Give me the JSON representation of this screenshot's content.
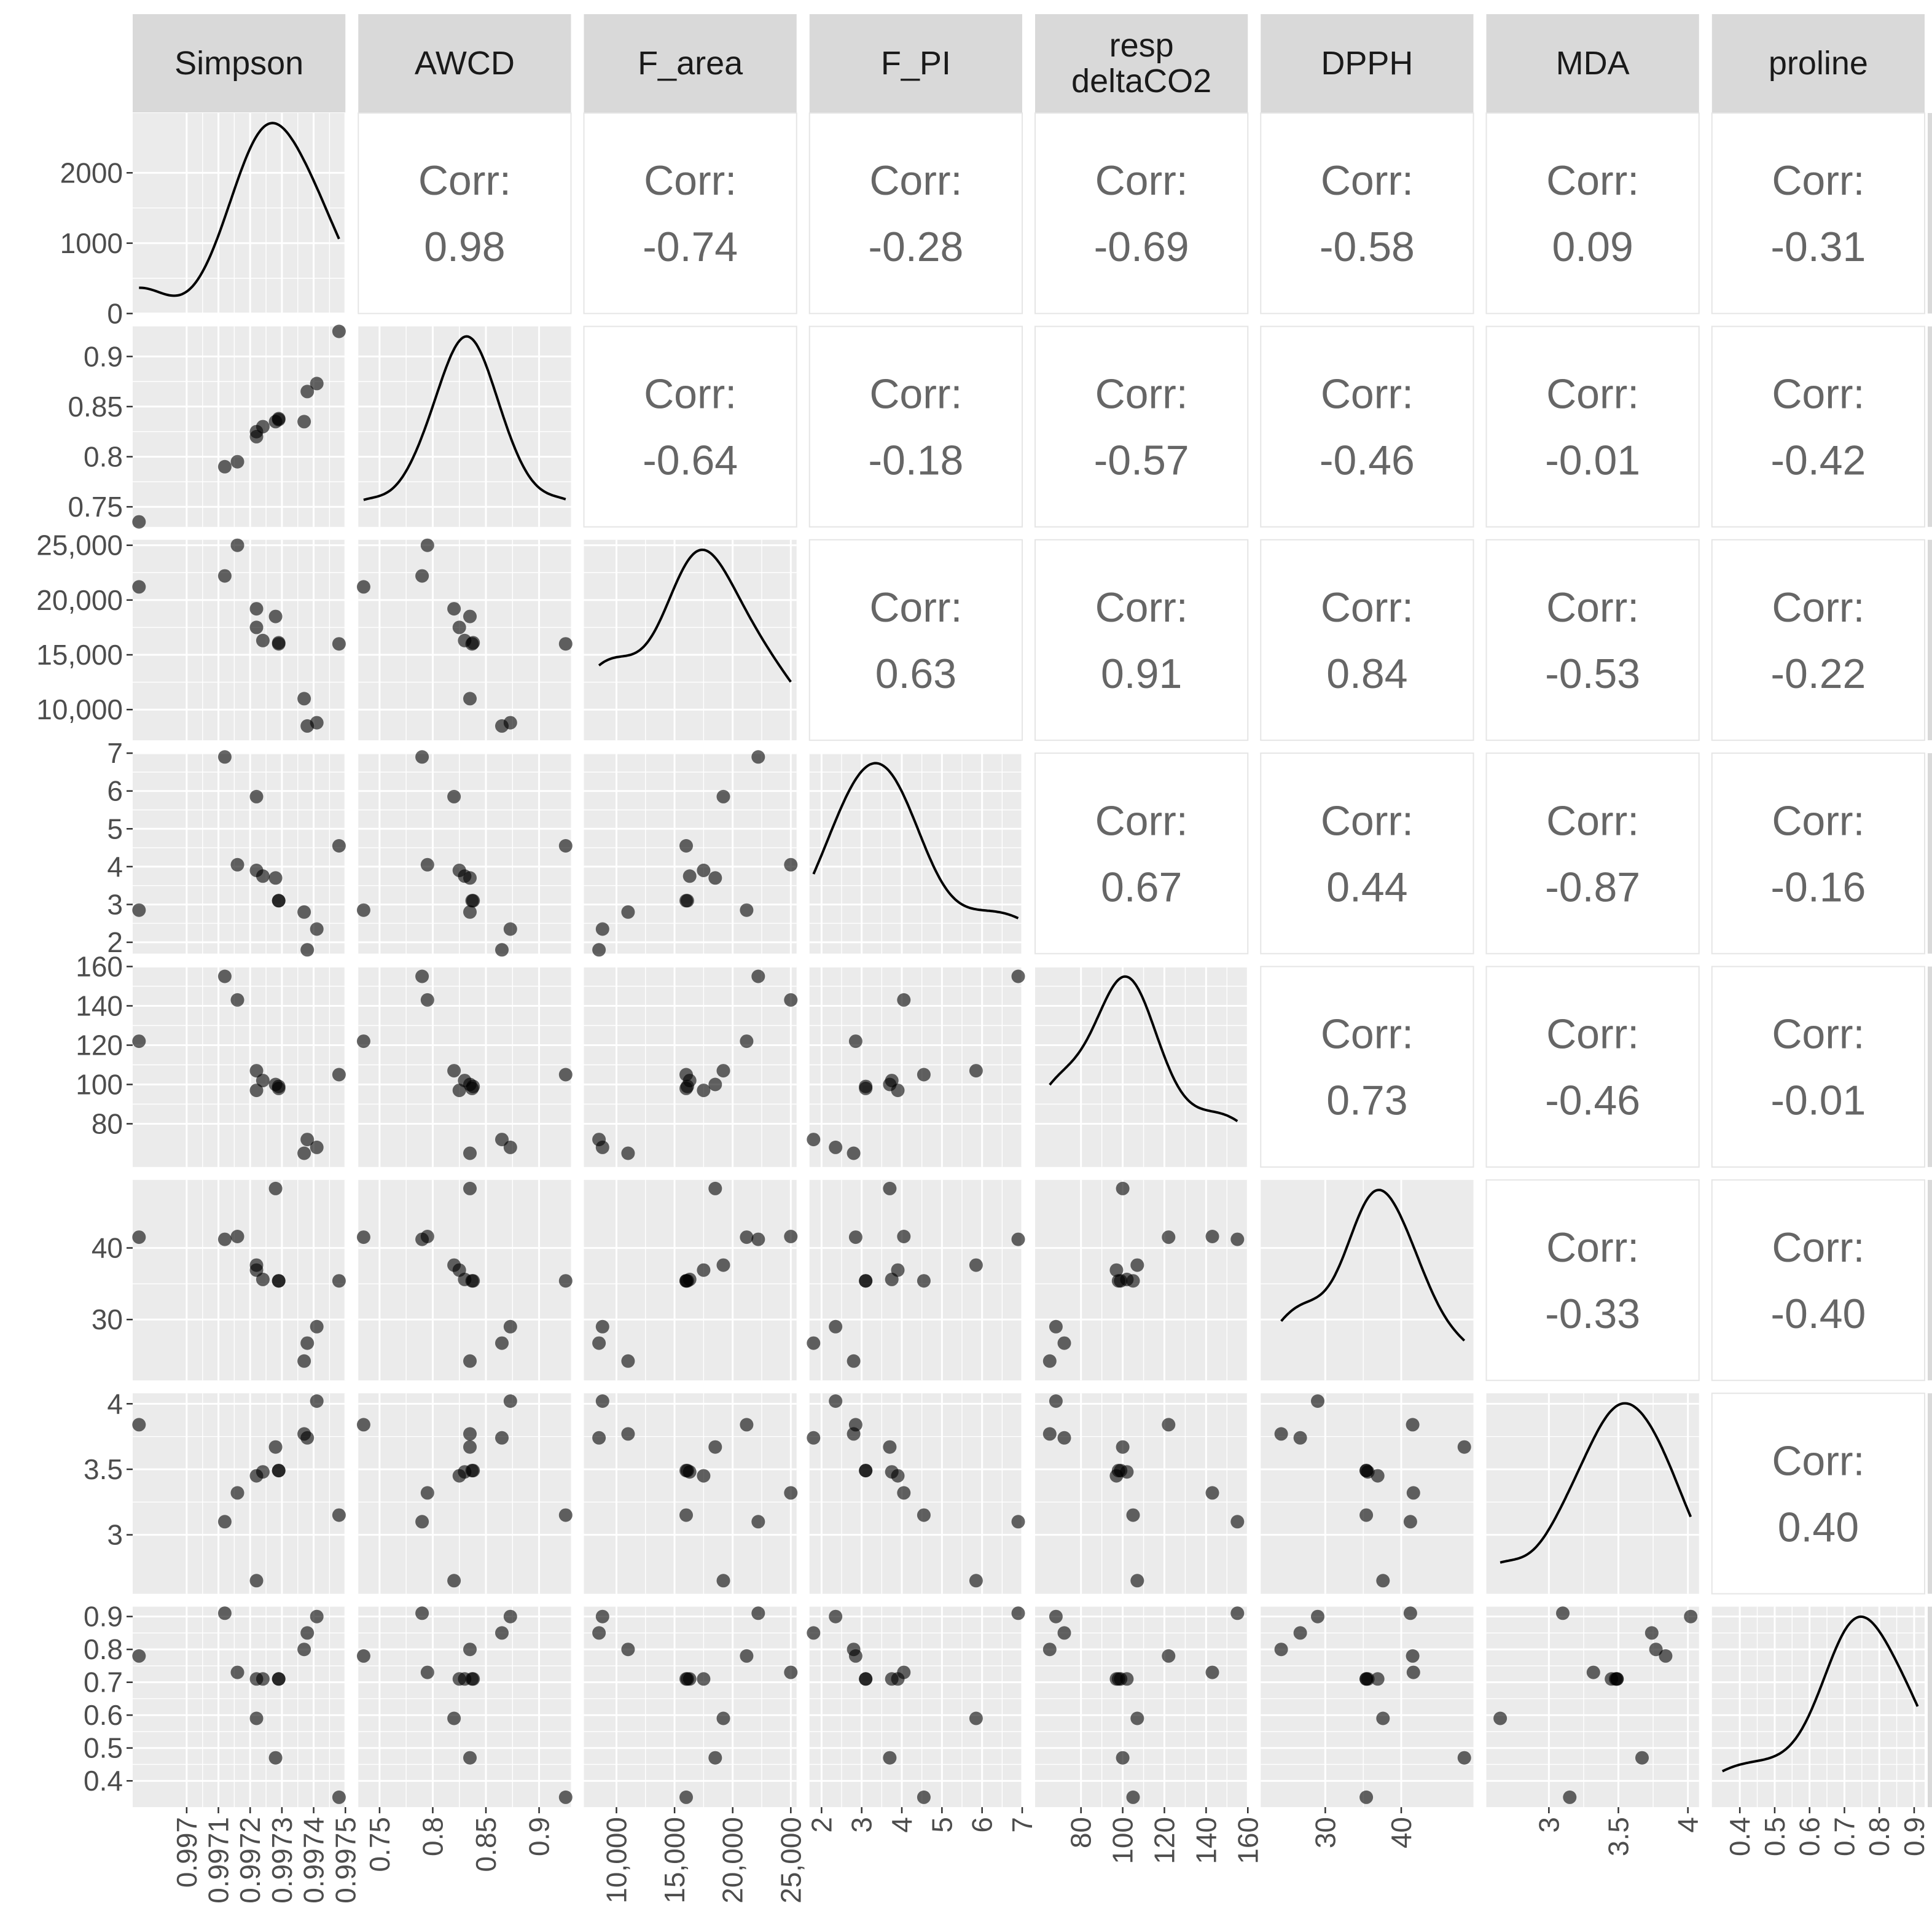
{
  "variables": [
    "Simpson",
    "AWCD",
    "F_area",
    "F_PI",
    "resp deltaCO2",
    "DPPH",
    "MDA",
    "proline"
  ],
  "strip_labels": [
    [
      "Simpson"
    ],
    [
      "AWCD"
    ],
    [
      "F_area"
    ],
    [
      "F_PI"
    ],
    [
      "resp",
      "deltaCO2"
    ],
    [
      "DPPH"
    ],
    [
      "MDA"
    ],
    [
      "proline"
    ]
  ],
  "colors": {
    "panel_bg": "#ebebeb",
    "grid": "#ffffff",
    "strip_bg": "#d9d9d9",
    "point": "#000000",
    "point_opacity": 0.6,
    "density_line": "#000000",
    "corr_text": "#666666",
    "tick_text": "#4d4d4d"
  },
  "corr_label": "Corr:",
  "chart_data": {
    "type": "scatter",
    "title": "",
    "observations": {
      "Simpson": [
        0.99685,
        0.99712,
        0.99716,
        0.99722,
        0.99722,
        0.99724,
        0.99728,
        0.99729,
        0.99729,
        0.99737,
        0.99738,
        0.99741,
        0.99748
      ],
      "AWCD": [
        0.735,
        0.79,
        0.795,
        0.82,
        0.825,
        0.83,
        0.835,
        0.837,
        0.838,
        0.835,
        0.865,
        0.873,
        0.925
      ],
      "F_area": [
        21200,
        22200,
        25000,
        19200,
        17500,
        16300,
        18500,
        16000,
        16100,
        11000,
        8500,
        8800,
        16000
      ],
      "F_PI": [
        2.85,
        6.9,
        4.05,
        5.85,
        3.9,
        3.75,
        3.7,
        3.1,
        3.1,
        2.8,
        1.8,
        2.35,
        4.55
      ],
      "resp_deltaCO2": [
        122,
        155,
        143,
        107,
        97,
        102,
        100,
        98,
        99,
        65,
        72,
        68,
        105
      ],
      "DPPH": [
        41.5,
        41.2,
        41.6,
        37.6,
        36.9,
        35.6,
        48.3,
        35.4,
        35.4,
        24.2,
        26.7,
        29.0,
        35.4
      ],
      "MDA": [
        3.84,
        3.1,
        3.32,
        2.65,
        3.45,
        3.48,
        3.67,
        3.49,
        3.49,
        3.77,
        3.74,
        4.02,
        3.15
      ],
      "proline": [
        0.78,
        0.91,
        0.73,
        0.59,
        0.71,
        0.71,
        0.47,
        0.71,
        0.71,
        0.8,
        0.85,
        0.9,
        0.35
      ]
    },
    "panel_ranges": [
      [
        0.99683,
        0.9975
      ],
      [
        0.73,
        0.93
      ],
      [
        7200,
        25500
      ],
      [
        1.7,
        7.0
      ],
      [
        58,
        160
      ],
      [
        21.5,
        49.5
      ],
      [
        2.55,
        4.08
      ],
      [
        0.32,
        0.93
      ]
    ],
    "density_y_range": [
      0,
      2850
    ],
    "x_ticks": [
      [
        "0.997",
        "0.9971",
        "0.9972",
        "0.9973",
        "0.9974",
        "0.9975"
      ],
      [
        "0.75",
        "0.8",
        "0.85",
        "0.9"
      ],
      [
        "10,000",
        "15,000",
        "20,000",
        "25,000"
      ],
      [
        "2",
        "3",
        "4",
        "5",
        "6",
        "7"
      ],
      [
        "80",
        "100",
        "120",
        "140",
        "160"
      ],
      [
        "30",
        "40"
      ],
      [
        "3",
        "3.5",
        "4"
      ],
      [
        "0.4",
        "0.5",
        "0.6",
        "0.7",
        "0.8",
        "0.9"
      ]
    ],
    "x_tick_values": [
      [
        0.997,
        0.9971,
        0.9972,
        0.9973,
        0.9974,
        0.9975
      ],
      [
        0.75,
        0.8,
        0.85,
        0.9
      ],
      [
        10000,
        15000,
        20000,
        25000
      ],
      [
        2,
        3,
        4,
        5,
        6,
        7
      ],
      [
        80,
        100,
        120,
        140,
        160
      ],
      [
        30,
        40
      ],
      [
        3,
        3.5,
        4
      ],
      [
        0.4,
        0.5,
        0.6,
        0.7,
        0.8,
        0.9
      ]
    ],
    "y_ticks": [
      [
        "0",
        "1000",
        "2000"
      ],
      [
        "0.75",
        "0.8",
        "0.85",
        "0.9"
      ],
      [
        "10,000",
        "15,000",
        "20,000",
        "25,000"
      ],
      [
        "2",
        "3",
        "4",
        "5",
        "6",
        "7"
      ],
      [
        "80",
        "100",
        "120",
        "140",
        "160"
      ],
      [
        "30",
        "40"
      ],
      [
        "3",
        "3.5",
        "4"
      ],
      [
        "0.4",
        "0.5",
        "0.6",
        "0.7",
        "0.8",
        "0.9"
      ]
    ],
    "y_tick_values": [
      [
        0,
        1000,
        2000
      ],
      [
        0.75,
        0.8,
        0.85,
        0.9
      ],
      [
        10000,
        15000,
        20000,
        25000
      ],
      [
        2,
        3,
        4,
        5,
        6,
        7
      ],
      [
        80,
        100,
        120,
        140,
        160
      ],
      [
        30,
        40
      ],
      [
        3,
        3.5,
        4
      ],
      [
        0.4,
        0.5,
        0.6,
        0.7,
        0.8,
        0.9
      ]
    ],
    "correlations": [
      {
        "row": "Simpson",
        "col": "AWCD",
        "value": "0.98"
      },
      {
        "row": "Simpson",
        "col": "F_area",
        "value": "-0.74"
      },
      {
        "row": "Simpson",
        "col": "F_PI",
        "value": "-0.28"
      },
      {
        "row": "Simpson",
        "col": "resp deltaCO2",
        "value": "-0.69"
      },
      {
        "row": "Simpson",
        "col": "DPPH",
        "value": "-0.58"
      },
      {
        "row": "Simpson",
        "col": "MDA",
        "value": "0.09"
      },
      {
        "row": "Simpson",
        "col": "proline",
        "value": "-0.31"
      },
      {
        "row": "AWCD",
        "col": "F_area",
        "value": "-0.64"
      },
      {
        "row": "AWCD",
        "col": "F_PI",
        "value": "-0.18"
      },
      {
        "row": "AWCD",
        "col": "resp deltaCO2",
        "value": "-0.57"
      },
      {
        "row": "AWCD",
        "col": "DPPH",
        "value": "-0.46"
      },
      {
        "row": "AWCD",
        "col": "MDA",
        "value": "-0.01"
      },
      {
        "row": "AWCD",
        "col": "proline",
        "value": "-0.42"
      },
      {
        "row": "F_area",
        "col": "F_PI",
        "value": "0.63"
      },
      {
        "row": "F_area",
        "col": "resp deltaCO2",
        "value": "0.91"
      },
      {
        "row": "F_area",
        "col": "DPPH",
        "value": "0.84"
      },
      {
        "row": "F_area",
        "col": "MDA",
        "value": "-0.53"
      },
      {
        "row": "F_area",
        "col": "proline",
        "value": "-0.22"
      },
      {
        "row": "F_PI",
        "col": "resp deltaCO2",
        "value": "0.67"
      },
      {
        "row": "F_PI",
        "col": "DPPH",
        "value": "0.44"
      },
      {
        "row": "F_PI",
        "col": "MDA",
        "value": "-0.87"
      },
      {
        "row": "F_PI",
        "col": "proline",
        "value": "-0.16"
      },
      {
        "row": "resp deltaCO2",
        "col": "DPPH",
        "value": "0.73"
      },
      {
        "row": "resp deltaCO2",
        "col": "MDA",
        "value": "-0.46"
      },
      {
        "row": "resp deltaCO2",
        "col": "proline",
        "value": "-0.01"
      },
      {
        "row": "DPPH",
        "col": "MDA",
        "value": "-0.33"
      },
      {
        "row": "DPPH",
        "col": "proline",
        "value": "-0.40"
      },
      {
        "row": "MDA",
        "col": "proline",
        "value": "0.40"
      }
    ],
    "grid": true,
    "legend": "none"
  }
}
